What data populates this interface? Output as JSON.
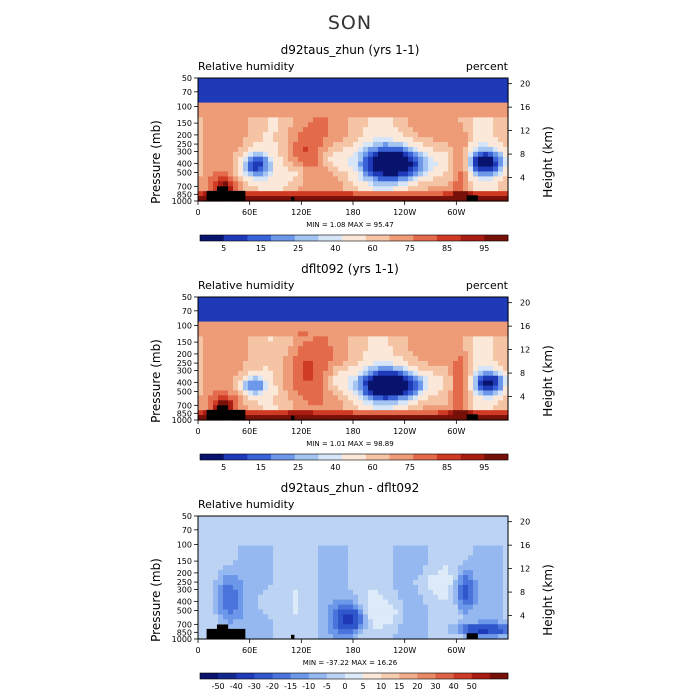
{
  "figure": {
    "title": "SON"
  },
  "panels": [
    {
      "title": "d92taus_zhun (yrs 1-1)",
      "left_label": "Relative humidity",
      "right_label": "percent",
      "ylabel_left": "Pressure (mb)",
      "ylabel_right": "Height (km)",
      "min_max": "MIN =     1.08   MAX =   95.47",
      "colorbar": {
        "colors": [
          "#08136e",
          "#1f3ab8",
          "#3a63d8",
          "#6d97e8",
          "#a4c4f2",
          "#d6e5f7",
          "#fbe8d8",
          "#f5c4a5",
          "#ee9b78",
          "#e36a4b",
          "#cf3a24",
          "#a81c12",
          "#761008"
        ],
        "labels": [
          "5",
          "15",
          "25",
          "40",
          "60",
          "75",
          "85",
          "95"
        ]
      }
    },
    {
      "title": "dflt092 (yrs 1-1)",
      "left_label": "Relative humidity",
      "right_label": "percent",
      "ylabel_left": "Pressure (mb)",
      "ylabel_right": "Height (km)",
      "min_max": "MIN =     1.01   MAX =   98.89",
      "colorbar": {
        "colors": [
          "#08136e",
          "#1f3ab8",
          "#3a63d8",
          "#6d97e8",
          "#a4c4f2",
          "#d6e5f7",
          "#fbe8d8",
          "#f5c4a5",
          "#ee9b78",
          "#e36a4b",
          "#cf3a24",
          "#a81c12",
          "#761008"
        ],
        "labels": [
          "5",
          "15",
          "25",
          "40",
          "60",
          "75",
          "85",
          "95"
        ]
      }
    },
    {
      "title": "d92taus_zhun - dflt092",
      "left_label": "Relative humidity",
      "right_label": "",
      "ylabel_left": "Pressure (mb)",
      "ylabel_right": "Height (km)",
      "min_max": "MIN =  -37.22   MAX =   16.26",
      "colorbar": {
        "colors": [
          "#08136e",
          "#13288f",
          "#1f3ab8",
          "#3056cc",
          "#4a74dc",
          "#6d97e8",
          "#94b8ef",
          "#bcd3f4",
          "#ddeaf8",
          "#fbe8d8",
          "#f5cdb1",
          "#f0ad8a",
          "#e88966",
          "#dd6346",
          "#cb3b27",
          "#a81c12",
          "#761008"
        ],
        "labels": [
          "-50",
          "-40",
          "-30",
          "-20",
          "-15",
          "-10",
          "-5",
          "0",
          "5",
          "10",
          "15",
          "20",
          "30",
          "40",
          "50"
        ]
      }
    }
  ],
  "chart_data": [
    {
      "type": "heatmap",
      "title": "d92taus_zhun (yrs 1-1)",
      "variable": "Relative humidity",
      "units": "percent",
      "xlabel": "",
      "ylabel": "Pressure (mb)",
      "ylabel_right": "Height (km)",
      "x_ticks": [
        "0",
        "60E",
        "120E",
        "180",
        "120W",
        "60W"
      ],
      "x_tick_values": [
        0,
        60,
        120,
        180,
        240,
        300
      ],
      "xlim": [
        0,
        360
      ],
      "y_ticks": [
        "1000",
        "850",
        "700",
        "500",
        "400",
        "300",
        "250",
        "200",
        "150",
        "100",
        "70",
        "50"
      ],
      "y_tick_values": [
        1000,
        850,
        700,
        500,
        400,
        300,
        250,
        200,
        150,
        100,
        70,
        50
      ],
      "ylim": [
        1000,
        50
      ],
      "y_scale": "log",
      "right_ticks": [
        "4",
        "8",
        "12",
        "16",
        "20"
      ],
      "min": 1.08,
      "max": 95.47,
      "levels": [
        5,
        10,
        15,
        20,
        25,
        30,
        40,
        50,
        60,
        70,
        75,
        80,
        85,
        90,
        95
      ],
      "features": [
        {
          "kind": "dry",
          "lon": [
            45,
            85
          ],
          "p": [
            300,
            600
          ],
          "depth": 0.75
        },
        {
          "kind": "dry",
          "lon": [
            140,
            175
          ],
          "p": [
            250,
            500
          ],
          "depth": 0.35
        },
        {
          "kind": "dry",
          "lon": [
            185,
            285
          ],
          "p": [
            250,
            650
          ],
          "depth": 1.0
        },
        {
          "kind": "dry",
          "lon": [
            310,
            360
          ],
          "p": [
            280,
            550
          ],
          "depth": 0.75
        },
        {
          "kind": "dry",
          "lon": [
            100,
            130
          ],
          "p": [
            400,
            650
          ],
          "depth": 0.3
        },
        {
          "kind": "moist",
          "lon": [
            15,
            45
          ],
          "p": [
            550,
            950
          ],
          "depth": 0.7
        },
        {
          "kind": "moist",
          "lon": [
            295,
            315
          ],
          "p": [
            200,
            950
          ],
          "depth": 0.8
        },
        {
          "kind": "moist",
          "lon": [
            100,
            145
          ],
          "p": [
            150,
            600
          ],
          "depth": 0.55
        }
      ]
    },
    {
      "type": "heatmap",
      "title": "dflt092 (yrs 1-1)",
      "variable": "Relative humidity",
      "units": "percent",
      "xlabel": "",
      "ylabel": "Pressure (mb)",
      "ylabel_right": "Height (km)",
      "x_ticks": [
        "0",
        "60E",
        "120E",
        "180",
        "120W",
        "60W"
      ],
      "x_tick_values": [
        0,
        60,
        120,
        180,
        240,
        300
      ],
      "xlim": [
        0,
        360
      ],
      "y_ticks": [
        "1000",
        "850",
        "700",
        "500",
        "400",
        "300",
        "250",
        "200",
        "150",
        "100",
        "70",
        "50"
      ],
      "y_tick_values": [
        1000,
        850,
        700,
        500,
        400,
        300,
        250,
        200,
        150,
        100,
        70,
        50
      ],
      "ylim": [
        1000,
        50
      ],
      "y_scale": "log",
      "right_ticks": [
        "4",
        "8",
        "12",
        "16",
        "20"
      ],
      "min": 1.01,
      "max": 98.89,
      "levels": [
        5,
        10,
        15,
        20,
        25,
        30,
        40,
        50,
        60,
        70,
        75,
        80,
        85,
        90,
        95
      ],
      "features": [
        {
          "kind": "dry",
          "lon": [
            45,
            80
          ],
          "p": [
            330,
            560
          ],
          "depth": 0.65
        },
        {
          "kind": "dry",
          "lon": [
            150,
            175
          ],
          "p": [
            280,
            480
          ],
          "depth": 0.3
        },
        {
          "kind": "dry",
          "lon": [
            180,
            280
          ],
          "p": [
            280,
            650
          ],
          "depth": 1.0
        },
        {
          "kind": "dry",
          "lon": [
            320,
            360
          ],
          "p": [
            300,
            540
          ],
          "depth": 0.75
        },
        {
          "kind": "moist",
          "lon": [
            15,
            45
          ],
          "p": [
            550,
            950
          ],
          "depth": 0.75
        },
        {
          "kind": "moist",
          "lon": [
            295,
            315
          ],
          "p": [
            200,
            950
          ],
          "depth": 0.85
        },
        {
          "kind": "moist",
          "lon": [
            95,
            145
          ],
          "p": [
            150,
            650
          ],
          "depth": 0.6
        }
      ]
    },
    {
      "type": "heatmap",
      "title": "d92taus_zhun - dflt092",
      "variable": "Relative humidity",
      "units": "",
      "xlabel": "",
      "ylabel": "Pressure (mb)",
      "ylabel_right": "Height (km)",
      "x_ticks": [
        "0",
        "60E",
        "120E",
        "180",
        "120W",
        "60W"
      ],
      "x_tick_values": [
        0,
        60,
        120,
        180,
        240,
        300
      ],
      "xlim": [
        0,
        360
      ],
      "y_ticks": [
        "1000",
        "850",
        "700",
        "500",
        "400",
        "300",
        "250",
        "200",
        "150",
        "100",
        "70",
        "50"
      ],
      "y_tick_values": [
        1000,
        850,
        700,
        500,
        400,
        300,
        250,
        200,
        150,
        100,
        70,
        50
      ],
      "ylim": [
        1000,
        50
      ],
      "y_scale": "log",
      "right_ticks": [
        "4",
        "8",
        "12",
        "16",
        "20"
      ],
      "min": -37.22,
      "max": 16.26,
      "levels": [
        -50,
        -40,
        -30,
        -20,
        -15,
        -10,
        -5,
        0,
        5,
        10,
        15,
        20,
        30,
        40,
        50
      ],
      "features": [
        {
          "kind": "neg",
          "lon": [
            160,
            190
          ],
          "p": [
            450,
            850
          ],
          "depth": 0.9
        },
        {
          "kind": "neg",
          "lon": [
            300,
            360
          ],
          "p": [
            700,
            900
          ],
          "depth": 0.8
        },
        {
          "kind": "neg",
          "lon": [
            20,
            50
          ],
          "p": [
            200,
            700
          ],
          "depth": 0.5
        },
        {
          "kind": "neg",
          "lon": [
            300,
            320
          ],
          "p": [
            200,
            500
          ],
          "depth": 0.6
        },
        {
          "kind": "pos",
          "lon": [
            200,
            240
          ],
          "p": [
            400,
            700
          ],
          "depth": 0.4
        },
        {
          "kind": "pos",
          "lon": [
            250,
            290
          ],
          "p": [
            200,
            350
          ],
          "depth": 0.35
        },
        {
          "kind": "pos",
          "lon": [
            60,
            90
          ],
          "p": [
            300,
            550
          ],
          "depth": 0.25
        }
      ]
    }
  ]
}
